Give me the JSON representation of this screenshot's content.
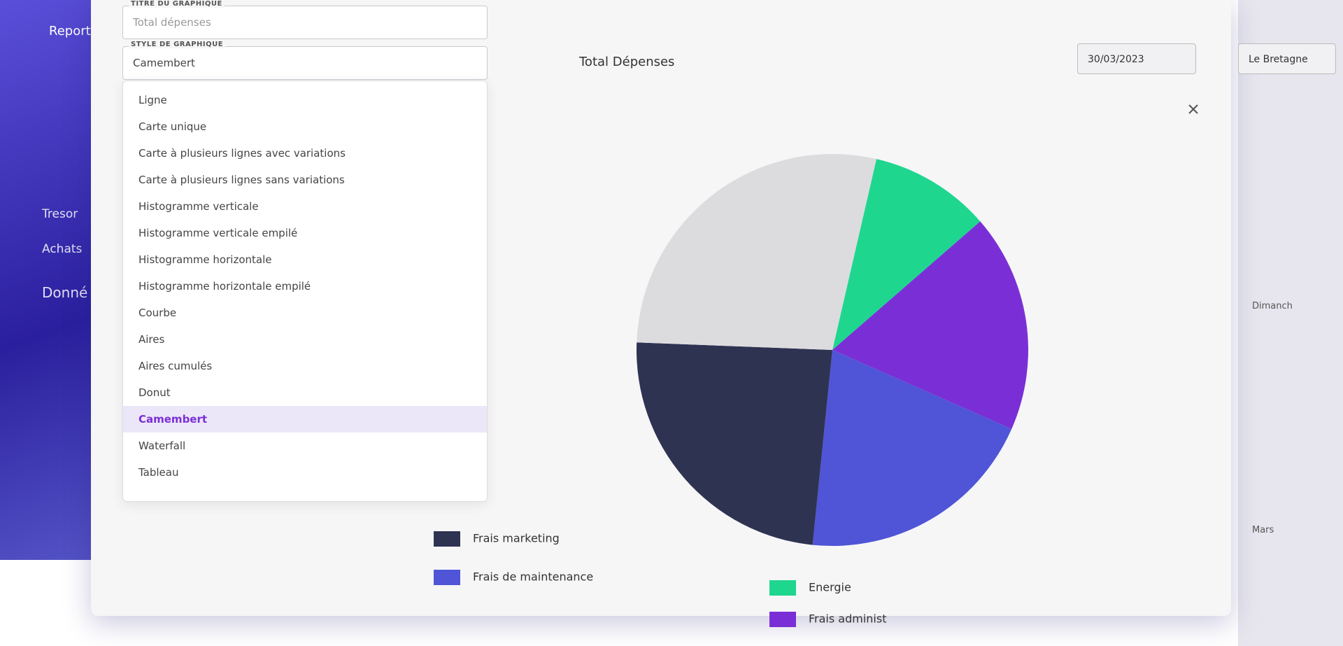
{
  "sidebar": {
    "title": "Report",
    "items": [
      "Tresor",
      "Achats",
      "Donné"
    ]
  },
  "header": {
    "date": "30/03/2023",
    "site": "Le Bretagne"
  },
  "background_labels": [
    "Dimanch",
    "Mars"
  ],
  "form": {
    "title_label": "TITRE DU GRAPHIQUE",
    "title_value": "Total dépenses",
    "style_label": "STYLE DE GRAPHIQUE",
    "style_value": "Camembert",
    "options": [
      "Ligne",
      "Carte unique",
      "Carte à plusieurs lignes avec variations",
      "Carte à plusieurs lignes sans variations",
      "Histogramme verticale",
      "Histogramme verticale empilé",
      "Histogramme horizontale",
      "Histogramme horizontale empilé",
      "Courbe",
      "Aires",
      "Aires cumulés",
      "Donut",
      "Camembert",
      "Waterfall",
      "Tableau"
    ],
    "selected_option": 12
  },
  "chart_data": {
    "type": "pie",
    "title": "Total Dépenses",
    "categories": [
      "Energie",
      "Frais administ",
      "Frais de maintenance",
      "Frais marketing",
      null
    ],
    "values": [
      10,
      18,
      20,
      24,
      28
    ],
    "colors": [
      "#1fd68f",
      "#7a2fd6",
      "#4f55d6",
      "#2f3352",
      "#dcdcdf"
    ]
  }
}
